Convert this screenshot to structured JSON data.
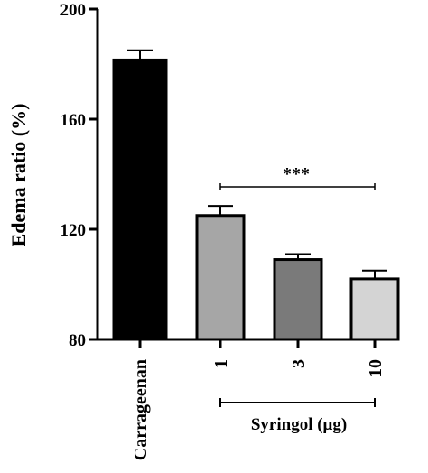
{
  "chart_data": {
    "type": "bar",
    "title": "",
    "ylabel": "Edema ratio (%)",
    "xlabel": "",
    "ylim": [
      80,
      200
    ],
    "yticks": [
      80,
      120,
      160,
      200
    ],
    "categories": [
      "Carrageenan",
      "1",
      "3",
      "10"
    ],
    "values": [
      181.5,
      125,
      109,
      102
    ],
    "error": [
      3.5,
      3.5,
      2,
      3
    ],
    "colors": [
      "#000000",
      "#a6a6a6",
      "#7a7a7a",
      "#d4d4d4"
    ],
    "group_label": "Syringol (μg)",
    "significance": {
      "text": "***",
      "from_category": "1",
      "to_category": "10"
    },
    "grid": false,
    "legend": "none"
  }
}
